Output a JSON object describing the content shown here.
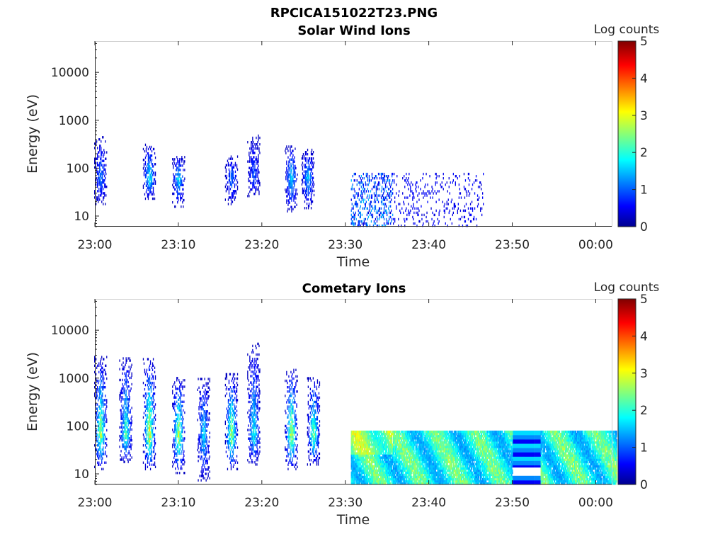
{
  "figure": {
    "title": "RPCICA151022T23.PNG"
  },
  "colormap": {
    "name": "jet",
    "range": [
      0,
      5
    ],
    "ticks": [
      "0",
      "1",
      "2",
      "3",
      "4",
      "5"
    ],
    "label": "Log counts"
  },
  "chart_data": [
    {
      "type": "heatmap",
      "title": "Solar Wind Ions",
      "xlabel": "Time",
      "ylabel": "Energy (eV)",
      "yscale": "log",
      "ylim": [
        6,
        45000
      ],
      "xlim": [
        "23:00",
        "00:02"
      ],
      "x_ticks": [
        "23:00",
        "23:10",
        "23:20",
        "23:30",
        "23:40",
        "23:50",
        "00:00"
      ],
      "y_ticks": [
        "10",
        "100",
        "1000",
        "10000"
      ],
      "colorbar": {
        "label": "Log counts",
        "range": [
          0,
          5
        ]
      },
      "bursts": [
        {
          "center": "23:00:40",
          "emax": 450,
          "emin": 17,
          "peak": 1.0
        },
        {
          "center": "23:06:30",
          "emax": 300,
          "emin": 22,
          "peak": 1.7
        },
        {
          "center": "23:10:00",
          "emax": 170,
          "emin": 15,
          "peak": 1.5
        },
        {
          "center": "23:16:20",
          "emax": 170,
          "emin": 17,
          "peak": 1.0
        },
        {
          "center": "23:19:00",
          "emax": 500,
          "emin": 25,
          "peak": 0.8
        },
        {
          "center": "23:23:30",
          "emax": 280,
          "emin": 12,
          "peak": 1.5
        },
        {
          "center": "23:25:30",
          "emax": 230,
          "emin": 14,
          "peak": 1.4
        },
        {
          "region": [
            "23:30:40",
            "23:46:30"
          ],
          "emin": 6,
          "emax": 80,
          "peak": 1.2,
          "density": "sparse"
        }
      ]
    },
    {
      "type": "heatmap",
      "title": "Cometary Ions",
      "xlabel": "Time",
      "ylabel": "Energy (eV)",
      "yscale": "log",
      "ylim": [
        6,
        45000
      ],
      "xlim": [
        "23:00",
        "00:02"
      ],
      "x_ticks": [
        "23:00",
        "23:10",
        "23:20",
        "23:30",
        "23:40",
        "23:50",
        "00:00"
      ],
      "y_ticks": [
        "10",
        "100",
        "1000",
        "10000"
      ],
      "colorbar": {
        "label": "Log counts",
        "range": [
          0,
          5
        ]
      },
      "bursts": [
        {
          "center": "23:00:40",
          "emax": 2700,
          "emin": 12,
          "peak": 2.5
        },
        {
          "center": "23:03:40",
          "emax": 2700,
          "emin": 17,
          "peak": 2.0
        },
        {
          "center": "23:06:30",
          "emax": 2600,
          "emin": 12,
          "peak": 2.9
        },
        {
          "center": "23:10:00",
          "emax": 1000,
          "emin": 10,
          "peak": 2.7
        },
        {
          "center": "23:13:00",
          "emax": 1000,
          "emin": 7,
          "peak": 1.5
        },
        {
          "center": "23:16:20",
          "emax": 1200,
          "emin": 12,
          "peak": 2.6
        },
        {
          "center": "23:19:00",
          "emax": 5000,
          "emin": 15,
          "peak": 1.7
        },
        {
          "center": "23:23:30",
          "emax": 1500,
          "emin": 12,
          "peak": 2.8
        },
        {
          "center": "23:26:10",
          "emax": 1000,
          "emin": 15,
          "peak": 2.3
        },
        {
          "region": [
            "23:30:40",
            "00:02:30"
          ],
          "emin": 6,
          "emax": 80,
          "peak": 2.1,
          "density": "dense",
          "gap": [
            "23:50:00",
            "23:53:20"
          ]
        }
      ]
    }
  ]
}
